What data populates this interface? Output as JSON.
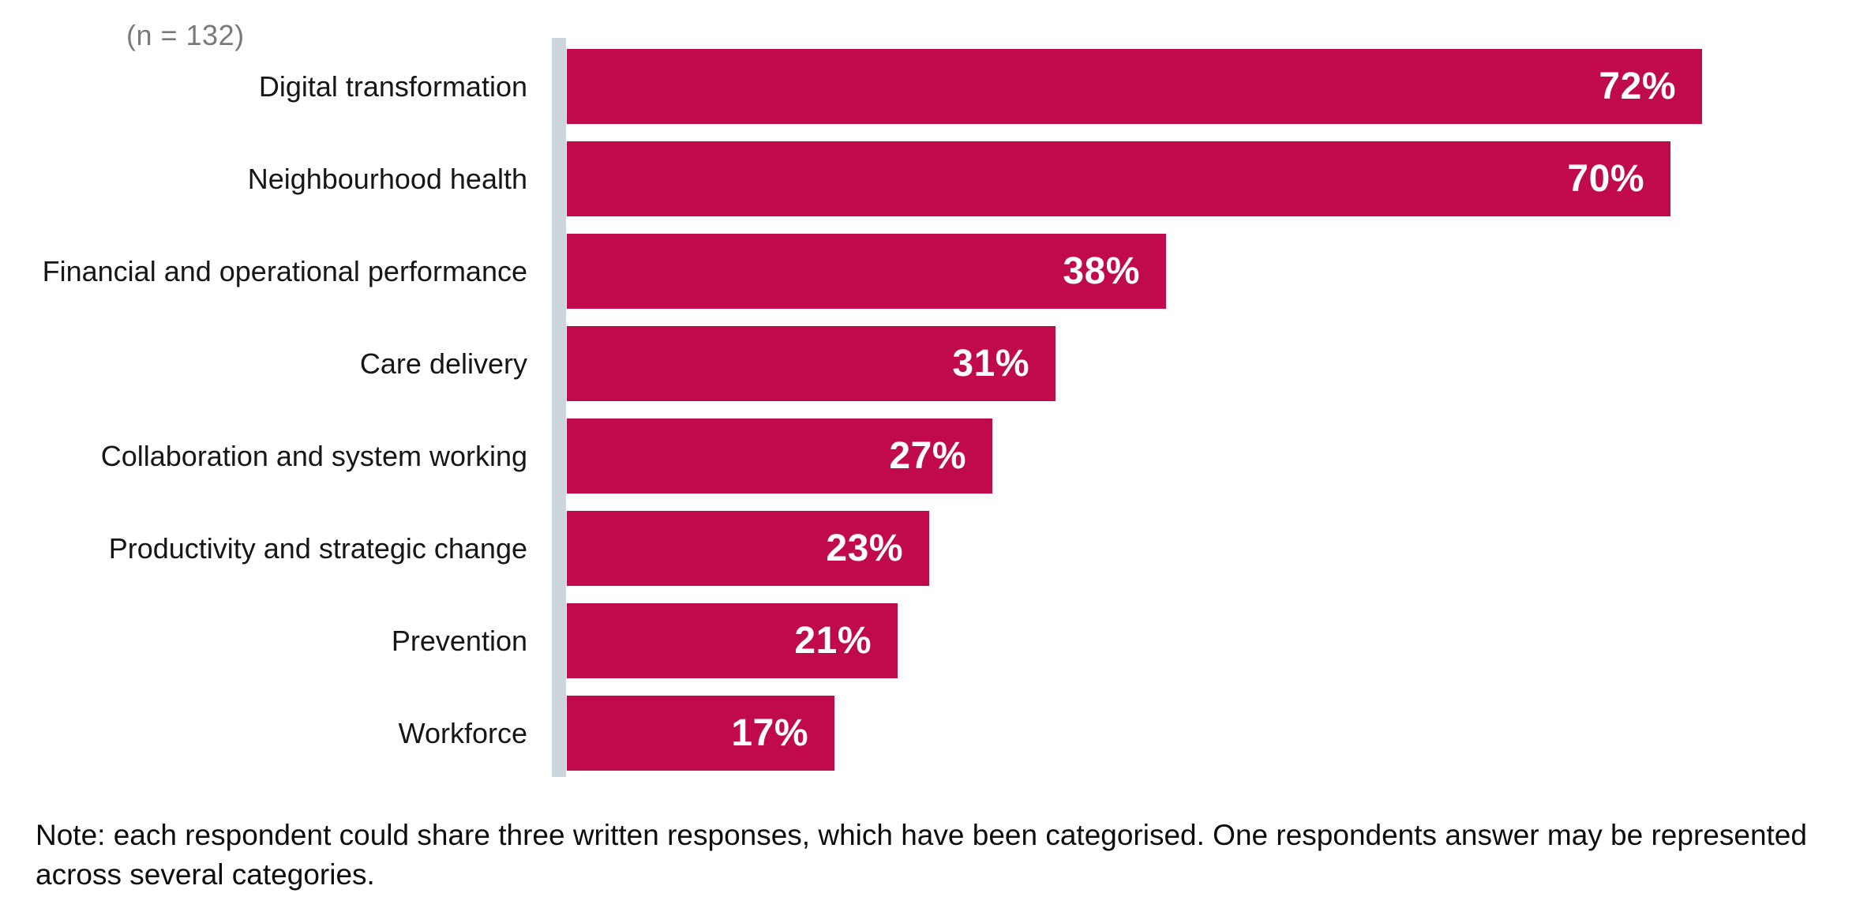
{
  "chart_data": {
    "type": "bar",
    "orientation": "horizontal",
    "sample_size_label": "(n = 132)",
    "categories": [
      "Digital transformation",
      "Neighbourhood health",
      "Financial and operational performance",
      "Care delivery",
      "Collaboration and system working",
      "Productivity and strategic change",
      "Prevention",
      "Workforce"
    ],
    "values": [
      72,
      70,
      38,
      31,
      27,
      23,
      21,
      17
    ],
    "value_label_suffix": "%",
    "xlim": [
      0,
      82
    ],
    "grid": false,
    "legend": false,
    "bar_color": "#C00A4B",
    "value_label_color": "#FFFFFF",
    "axis_line_color": "#CDD5DC"
  },
  "note": "Note: each respondent could share three written responses, which have been categorised. One respondents answer may be represented across several categories."
}
